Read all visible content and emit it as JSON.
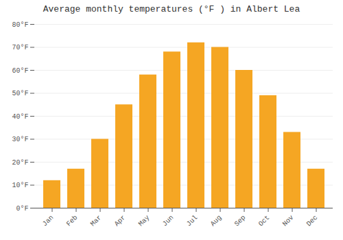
{
  "chart_data": {
    "type": "bar",
    "title": "Average monthly temperatures (°F ) in Albert Lea",
    "categories": [
      "Jan",
      "Feb",
      "Mar",
      "Apr",
      "May",
      "Jun",
      "Jul",
      "Aug",
      "Sep",
      "Oct",
      "Nov",
      "Dec"
    ],
    "values": [
      12,
      17,
      30,
      45,
      58,
      68,
      72,
      70,
      60,
      49,
      33,
      17
    ],
    "color": "#F5A623",
    "ylim": [
      0,
      80
    ],
    "yticks": [
      {
        "value": 0,
        "label": "0°F"
      },
      {
        "value": 10,
        "label": "10°F"
      },
      {
        "value": 20,
        "label": "20°F"
      },
      {
        "value": 30,
        "label": "30°F"
      },
      {
        "value": 40,
        "label": "40°F"
      },
      {
        "value": 50,
        "label": "50°F"
      },
      {
        "value": 60,
        "label": "60°F"
      },
      {
        "value": 70,
        "label": "70°F"
      },
      {
        "value": 80,
        "label": "80°F"
      }
    ],
    "grid": true
  }
}
